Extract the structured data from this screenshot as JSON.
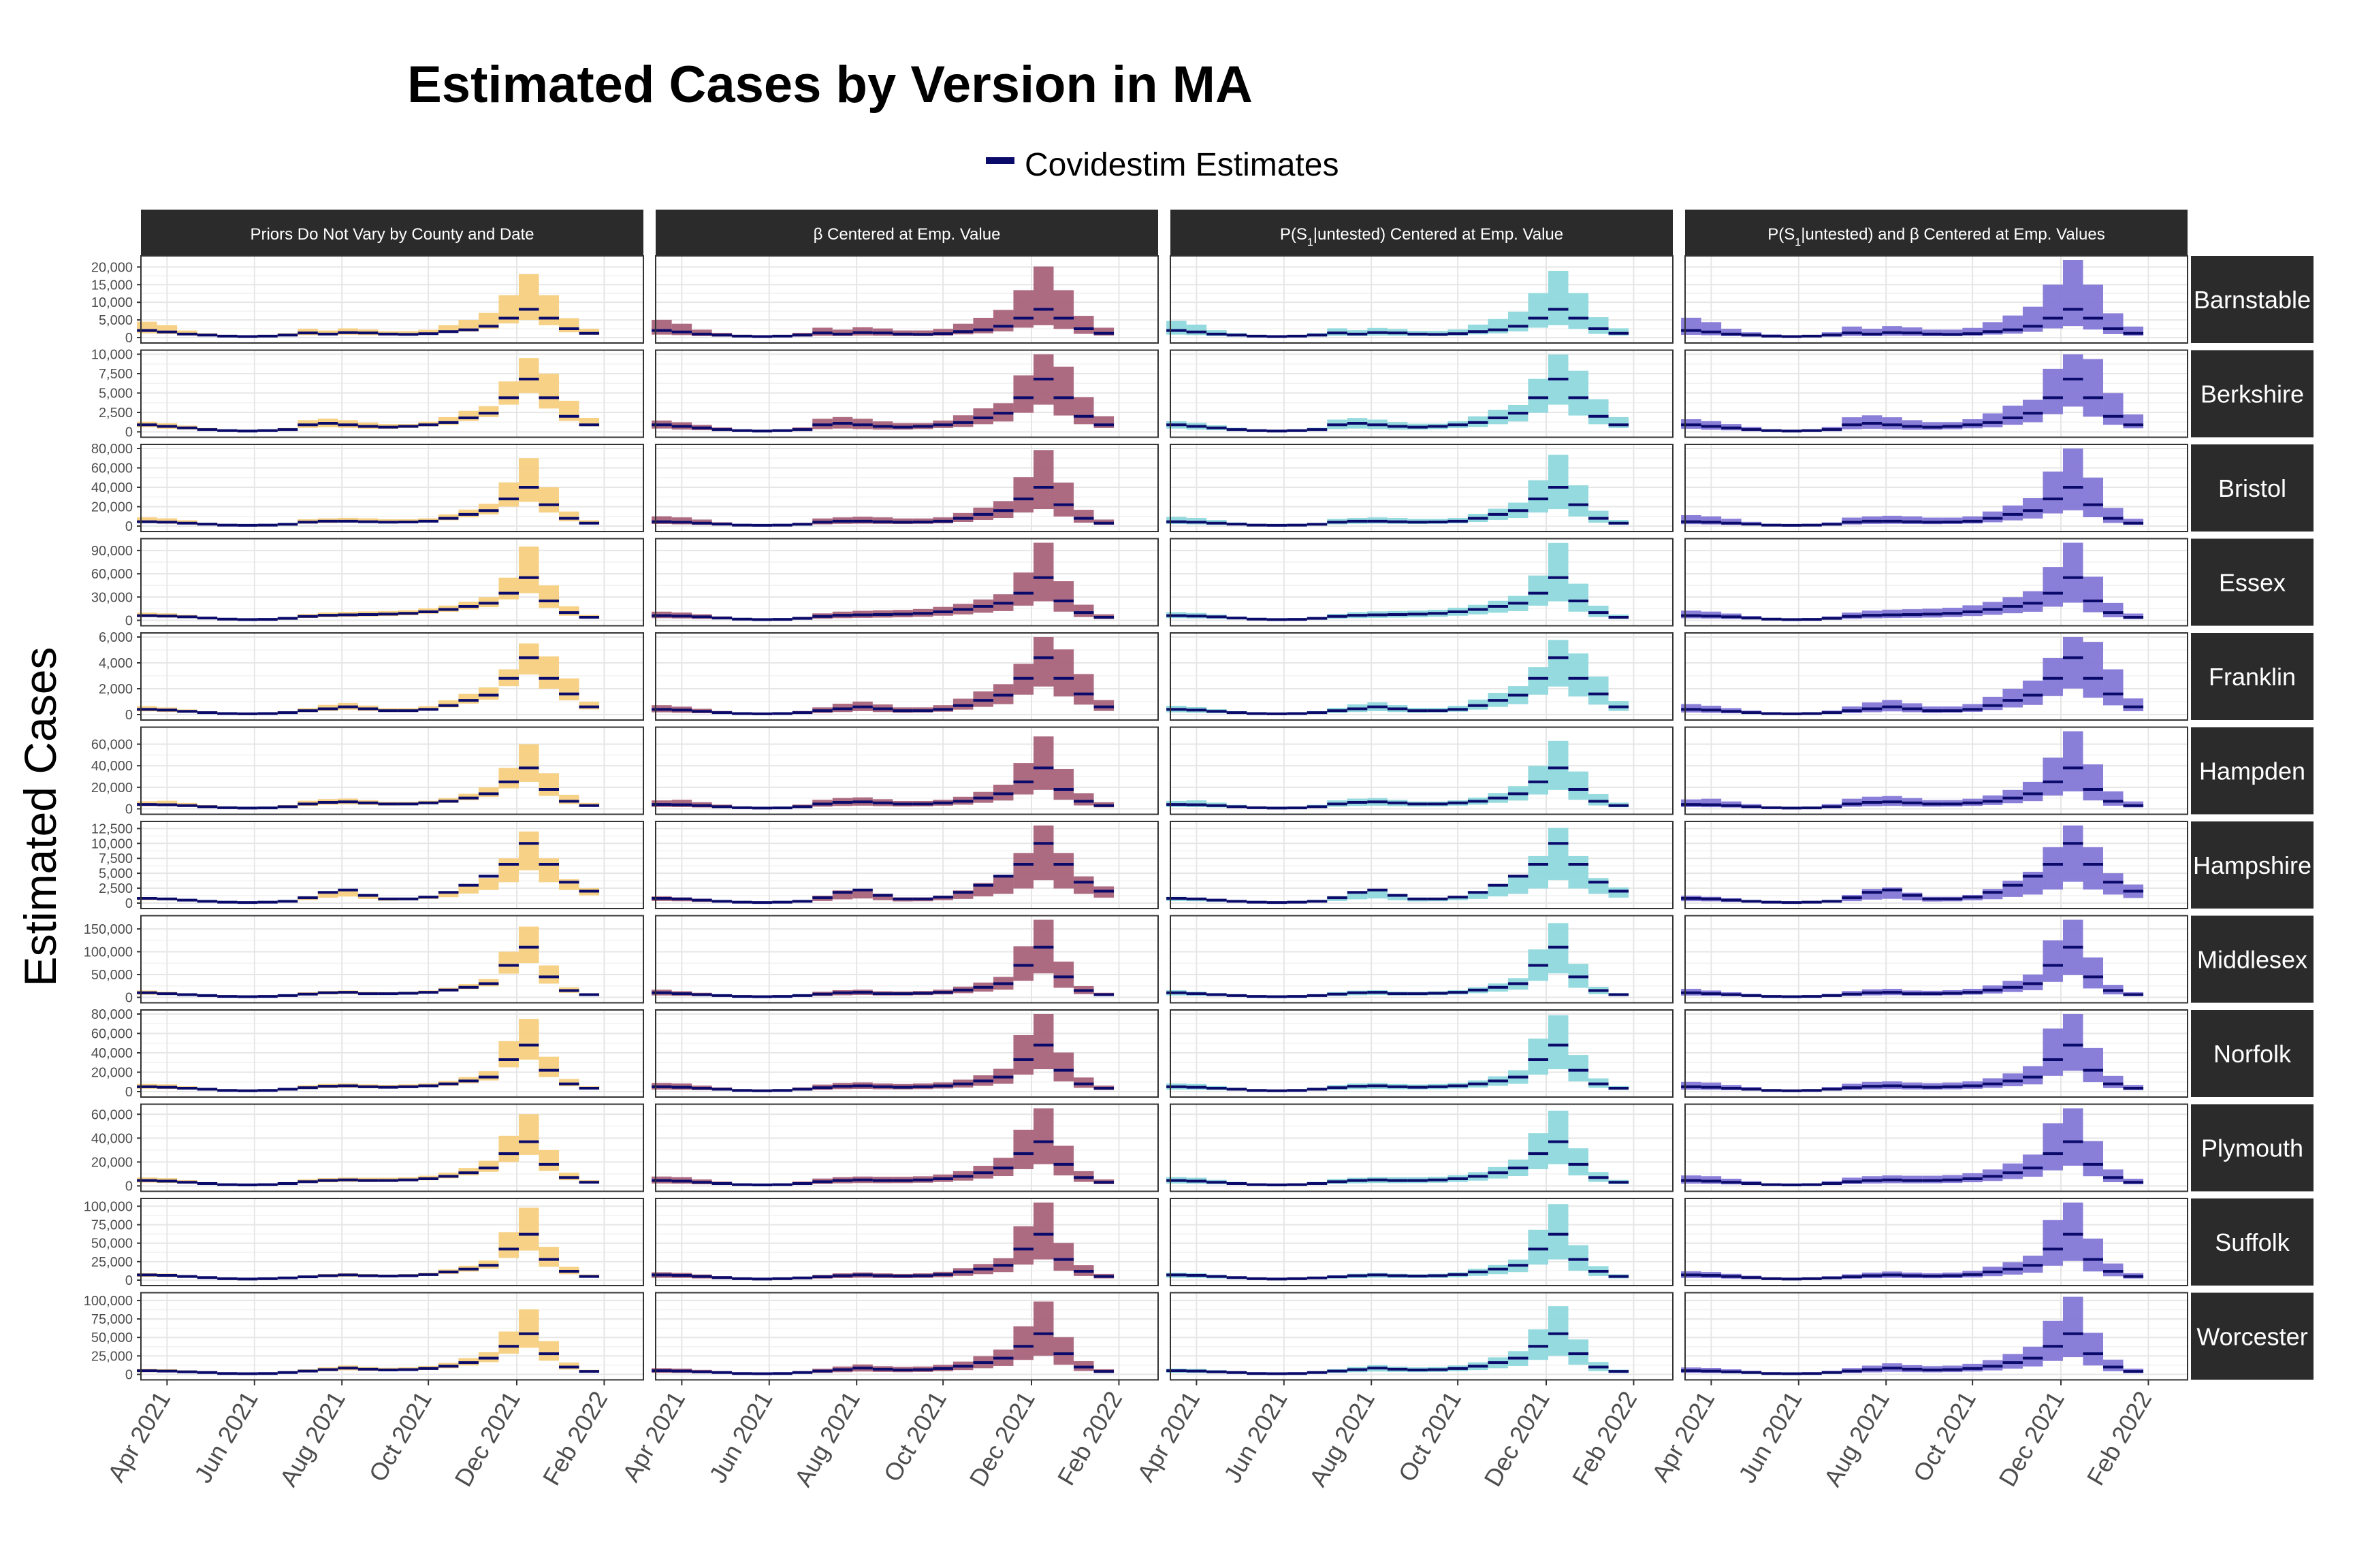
{
  "title": "Estimated Cases by Version in MA",
  "legend": {
    "label": "Covidestim Estimates",
    "position": "top"
  },
  "colors": {
    "line": "#0a0a6b",
    "strip_bg": "#2b2b2b",
    "strip_text": "#ffffff",
    "grid": "#e6e6e6",
    "panel_border": "#333333",
    "bands": [
      "#f5cf7f",
      "#a9637b",
      "#8ed8dc",
      "#8478d6"
    ]
  },
  "chart_data": {
    "type": "area",
    "description_type": "faceted interval bands with point-estimate segments",
    "ylabel": "Estimated Cases",
    "xlabel": "",
    "x_ticks": [
      "Apr 2021",
      "Jun 2021",
      "Aug 2021",
      "Oct 2021",
      "Dec 2021",
      "Feb 2022"
    ],
    "x_tick_positions": [
      1,
      5.35,
      9.7,
      14,
      18.4,
      22.75
    ],
    "x_range": [
      -0.3,
      24.7
    ],
    "grid": true,
    "columns": [
      "Priors Do Not Vary by County and Date",
      "β Centered at Emp. Value",
      "P(S1|untested) Centered at Emp. Value",
      "P(S1|untested) and β Centered at Emp. Values"
    ],
    "column_titles": [
      {
        "pre": "Priors Do Not Vary by County and Date",
        "sub": "",
        "post": ""
      },
      {
        "pre": "β Centered at Emp. Value",
        "sub": "",
        "post": ""
      },
      {
        "pre": "P(S",
        "sub": "1",
        "post": "|untested) Centered at Emp. Value"
      },
      {
        "pre": "P(S",
        "sub": "1",
        "post": "|untested) and β Centered at Emp. Values"
      }
    ],
    "band_scale": [
      [
        1.0,
        1.0
      ],
      [
        0.7,
        1.12
      ],
      [
        0.7,
        1.05
      ],
      [
        0.65,
        1.25
      ]
    ],
    "counties": [
      {
        "name": "Barnstable",
        "ymax": 22000,
        "ticks": [
          0,
          5000,
          10000,
          15000,
          20000
        ],
        "tick_labels": [
          "0",
          "5,000",
          "10,000",
          "15,000",
          "20,000"
        ],
        "estimate": [
          2000,
          1600,
          1000,
          700,
          400,
          300,
          400,
          700,
          1300,
          1000,
          1400,
          1300,
          1000,
          900,
          1100,
          1700,
          2200,
          3200,
          5500,
          8000,
          5500,
          2500,
          1200
        ],
        "lower": [
          1200,
          1000,
          600,
          400,
          200,
          150,
          200,
          400,
          700,
          600,
          800,
          700,
          600,
          600,
          800,
          1300,
          1700,
          2500,
          4000,
          5000,
          3500,
          1500,
          800
        ],
        "upper": [
          4500,
          3500,
          2000,
          1200,
          700,
          500,
          600,
          1200,
          2500,
          2000,
          2600,
          2300,
          1800,
          1800,
          2200,
          3500,
          5000,
          7000,
          12000,
          18000,
          12000,
          5500,
          2500
        ]
      },
      {
        "name": "Berkshire",
        "ymax": 10000,
        "ticks": [
          0,
          2500,
          5000,
          7500,
          10000
        ],
        "tick_labels": [
          "0",
          "2,500",
          "5,000",
          "7,500",
          "10,000"
        ],
        "estimate": [
          900,
          700,
          500,
          300,
          150,
          100,
          150,
          300,
          900,
          1100,
          900,
          700,
          600,
          700,
          900,
          1200,
          1800,
          2400,
          4400,
          6800,
          4400,
          2000,
          900
        ],
        "lower": [
          600,
          400,
          300,
          150,
          80,
          60,
          80,
          150,
          500,
          600,
          500,
          400,
          400,
          500,
          700,
          900,
          1400,
          1900,
          3500,
          5000,
          3000,
          1400,
          700
        ],
        "upper": [
          1300,
          1100,
          800,
          500,
          250,
          150,
          250,
          500,
          1500,
          1700,
          1500,
          1200,
          1000,
          1000,
          1300,
          1900,
          2700,
          3300,
          6500,
          9500,
          7500,
          4000,
          1800
        ]
      },
      {
        "name": "Bristol",
        "ymax": 80000,
        "ticks": [
          0,
          20000,
          40000,
          60000,
          80000
        ],
        "tick_labels": [
          "0",
          "20,000",
          "40,000",
          "60,000",
          "80,000"
        ],
        "estimate": [
          4500,
          4000,
          3000,
          2000,
          1000,
          800,
          1000,
          1800,
          4000,
          5000,
          5000,
          4500,
          4000,
          4200,
          5000,
          8000,
          12000,
          16000,
          28000,
          40000,
          22000,
          8000,
          3000
        ],
        "lower": [
          3000,
          2500,
          1800,
          1200,
          600,
          500,
          600,
          1100,
          2500,
          3200,
          3500,
          3200,
          3000,
          3300,
          4000,
          6000,
          9000,
          12000,
          20000,
          25000,
          14000,
          5000,
          2000
        ],
        "upper": [
          9000,
          8000,
          6000,
          3500,
          1500,
          1200,
          1500,
          3000,
          7000,
          8000,
          8500,
          8000,
          7000,
          7000,
          8000,
          12000,
          17000,
          23000,
          45000,
          70000,
          40000,
          15000,
          6000
        ]
      },
      {
        "name": "Essex",
        "ymax": 100000,
        "ticks": [
          0,
          30000,
          60000,
          90000
        ],
        "tick_labels": [
          "0",
          "30,000",
          "60,000",
          "90,000"
        ],
        "estimate": [
          6000,
          5500,
          4500,
          3000,
          1500,
          1000,
          1200,
          2500,
          5000,
          6500,
          7000,
          7500,
          8000,
          9000,
          11000,
          14000,
          18000,
          22000,
          35000,
          55000,
          25000,
          10000,
          4000
        ],
        "lower": [
          4000,
          3500,
          2800,
          1800,
          900,
          600,
          700,
          1500,
          3000,
          4000,
          4500,
          5000,
          5500,
          6500,
          8500,
          11000,
          14000,
          17000,
          27000,
          35000,
          16000,
          6000,
          2500
        ],
        "upper": [
          10000,
          9000,
          7000,
          4500,
          2200,
          1500,
          1800,
          4000,
          8000,
          10000,
          11000,
          11500,
          12000,
          13000,
          15500,
          19000,
          24000,
          30000,
          55000,
          95000,
          45000,
          18000,
          7000
        ]
      },
      {
        "name": "Franklin",
        "ymax": 6000,
        "ticks": [
          0,
          2000,
          4000,
          6000
        ],
        "tick_labels": [
          "0",
          "2,000",
          "4,000",
          "6,000"
        ],
        "estimate": [
          400,
          350,
          250,
          150,
          80,
          60,
          80,
          150,
          300,
          450,
          600,
          450,
          300,
          300,
          400,
          700,
          1100,
          1500,
          2800,
          4400,
          2800,
          1600,
          600
        ],
        "lower": [
          250,
          200,
          150,
          90,
          40,
          30,
          40,
          90,
          180,
          280,
          380,
          280,
          200,
          230,
          320,
          550,
          850,
          1150,
          2200,
          3100,
          2000,
          1100,
          400
        ],
        "upper": [
          650,
          550,
          400,
          250,
          130,
          100,
          130,
          250,
          500,
          750,
          900,
          700,
          500,
          500,
          650,
          1100,
          1600,
          2100,
          3500,
          5500,
          4500,
          2800,
          1000
        ]
      },
      {
        "name": "Hampden",
        "ymax": 72000,
        "ticks": [
          0,
          20000,
          40000,
          60000
        ],
        "tick_labels": [
          "0",
          "20,000",
          "40,000",
          "60,000"
        ],
        "estimate": [
          4000,
          3800,
          3000,
          2000,
          1000,
          700,
          900,
          2000,
          4500,
          6000,
          6500,
          5500,
          4500,
          4500,
          5500,
          7000,
          10000,
          14000,
          25000,
          38000,
          18000,
          7000,
          3000
        ],
        "lower": [
          2500,
          2300,
          1800,
          1200,
          600,
          400,
          500,
          1200,
          2800,
          3800,
          4200,
          3600,
          3100,
          3300,
          4200,
          5500,
          8000,
          11000,
          19000,
          25000,
          12000,
          4500,
          2000
        ],
        "upper": [
          7000,
          7500,
          5500,
          3500,
          1600,
          1100,
          1400,
          3500,
          7500,
          9000,
          9500,
          8000,
          6500,
          6500,
          7500,
          10000,
          14000,
          20000,
          38000,
          60000,
          33000,
          13000,
          5500
        ]
      },
      {
        "name": "Hampshire",
        "ymax": 13000,
        "ticks": [
          0,
          2500,
          5000,
          7500,
          10000,
          12500
        ],
        "tick_labels": [
          "0",
          "2,500",
          "5,000",
          "7,500",
          "10,000",
          "12,500"
        ],
        "estimate": [
          800,
          700,
          500,
          300,
          150,
          100,
          150,
          300,
          900,
          1800,
          2200,
          1300,
          700,
          700,
          1000,
          1800,
          3000,
          4500,
          6500,
          10000,
          6500,
          3500,
          2000
        ],
        "lower": [
          500,
          450,
          300,
          180,
          80,
          50,
          80,
          180,
          500,
          900,
          1100,
          700,
          400,
          450,
          700,
          1000,
          1600,
          2200,
          3500,
          5500,
          3500,
          2200,
          1300
        ],
        "upper": [
          1000,
          850,
          650,
          400,
          200,
          130,
          200,
          400,
          1100,
          1900,
          2100,
          1400,
          850,
          850,
          1100,
          1900,
          3000,
          4200,
          7500,
          12000,
          7500,
          4000,
          2500
        ]
      },
      {
        "name": "Middlesex",
        "ymax": 170000,
        "ticks": [
          0,
          50000,
          100000,
          150000
        ],
        "tick_labels": [
          "0",
          "50,000",
          "100,000",
          "150,000"
        ],
        "estimate": [
          10000,
          8000,
          6000,
          4000,
          2000,
          1500,
          2000,
          4000,
          7000,
          10000,
          11000,
          8000,
          8000,
          9000,
          11000,
          16000,
          22000,
          30000,
          70000,
          110000,
          45000,
          15000,
          6000
        ],
        "lower": [
          6000,
          5000,
          3800,
          2500,
          1200,
          900,
          1200,
          2500,
          4500,
          6500,
          7500,
          6000,
          6000,
          7000,
          9000,
          13000,
          18000,
          24000,
          52000,
          75000,
          30000,
          10000,
          4000
        ],
        "upper": [
          15000,
          12000,
          9000,
          6000,
          3000,
          2200,
          2800,
          6000,
          11000,
          14000,
          15000,
          12000,
          11500,
          12500,
          15000,
          21000,
          29000,
          40000,
          100000,
          155000,
          70000,
          22000,
          9000
        ]
      },
      {
        "name": "Norfolk",
        "ymax": 80000,
        "ticks": [
          0,
          20000,
          40000,
          60000,
          80000
        ],
        "tick_labels": [
          "0",
          "20,000",
          "40,000",
          "60,000",
          "80,000"
        ],
        "estimate": [
          5000,
          4500,
          3500,
          2500,
          1200,
          900,
          1200,
          2500,
          4000,
          5500,
          6000,
          5000,
          4500,
          5000,
          6000,
          8000,
          11000,
          15000,
          33000,
          48000,
          22000,
          8000,
          3500
        ],
        "lower": [
          3000,
          2800,
          2200,
          1600,
          800,
          600,
          800,
          1600,
          2600,
          3600,
          4000,
          3400,
          3200,
          3600,
          4500,
          6000,
          8500,
          11500,
          25000,
          33000,
          15000,
          5500,
          2300
        ],
        "upper": [
          8000,
          7500,
          5500,
          3800,
          1800,
          1300,
          1700,
          3800,
          6500,
          8000,
          8500,
          7500,
          7000,
          7500,
          8500,
          11000,
          15000,
          21000,
          52000,
          75000,
          36000,
          13000,
          5500
        ]
      },
      {
        "name": "Plymouth",
        "ymax": 65000,
        "ticks": [
          0,
          20000,
          40000,
          60000
        ],
        "tick_labels": [
          "0",
          "20,000",
          "40,000",
          "60,000"
        ],
        "estimate": [
          4500,
          4000,
          3000,
          2000,
          1000,
          800,
          1000,
          2000,
          3500,
          4500,
          5000,
          4500,
          4500,
          5000,
          6000,
          8000,
          11000,
          15000,
          27000,
          37000,
          18000,
          7000,
          3000
        ],
        "lower": [
          2800,
          2500,
          1900,
          1300,
          650,
          500,
          650,
          1300,
          2300,
          3000,
          3400,
          3200,
          3300,
          3800,
          4700,
          6300,
          8800,
          11800,
          20000,
          26000,
          12500,
          4800,
          2000
        ],
        "upper": [
          7000,
          6500,
          4800,
          3200,
          1500,
          1200,
          1500,
          3200,
          5500,
          6500,
          7000,
          6800,
          6800,
          7200,
          8500,
          11000,
          15000,
          21000,
          42000,
          60000,
          30000,
          11000,
          4800
        ]
      },
      {
        "name": "Suffolk",
        "ymax": 105000,
        "ticks": [
          0,
          25000,
          50000,
          75000,
          100000
        ],
        "tick_labels": [
          "0",
          "25,000",
          "50,000",
          "75,000",
          "100,000"
        ],
        "estimate": [
          7000,
          6500,
          5000,
          3500,
          2000,
          1500,
          2000,
          3000,
          4500,
          6000,
          7000,
          6000,
          5500,
          6000,
          7500,
          11000,
          15000,
          20000,
          42000,
          62000,
          28000,
          12000,
          5000
        ],
        "lower": [
          4500,
          4200,
          3200,
          2200,
          1300,
          1000,
          1300,
          2000,
          3000,
          4000,
          4700,
          4100,
          3900,
          4300,
          5500,
          8200,
          11500,
          15500,
          30000,
          40000,
          18000,
          8000,
          3300
        ],
        "upper": [
          9500,
          8800,
          6800,
          4800,
          2700,
          2000,
          2700,
          4200,
          6300,
          8200,
          9300,
          8200,
          7500,
          8200,
          10000,
          14500,
          19500,
          26500,
          65000,
          98000,
          45000,
          18000,
          7500
        ]
      },
      {
        "name": "Worcester",
        "ymax": 105000,
        "ticks": [
          0,
          25000,
          50000,
          75000,
          100000
        ],
        "tick_labels": [
          "0",
          "25,000",
          "50,000",
          "75,000",
          "100,000"
        ],
        "estimate": [
          5000,
          4500,
          3500,
          2500,
          1200,
          900,
          1200,
          2500,
          4500,
          6500,
          8500,
          7000,
          6000,
          6500,
          8000,
          11000,
          16000,
          22000,
          38000,
          55000,
          28000,
          10000,
          4000
        ],
        "lower": [
          3000,
          2800,
          2200,
          1600,
          750,
          550,
          750,
          1600,
          2900,
          4200,
          5500,
          4700,
          4200,
          4700,
          6000,
          8300,
          12000,
          16500,
          28000,
          36000,
          18500,
          6500,
          2600
        ],
        "upper": [
          7500,
          7000,
          5500,
          3800,
          1800,
          1300,
          1700,
          3800,
          6800,
          9500,
          12000,
          10000,
          9000,
          9500,
          11500,
          15500,
          22000,
          30000,
          58000,
          88000,
          45000,
          16000,
          6200
        ]
      }
    ]
  }
}
